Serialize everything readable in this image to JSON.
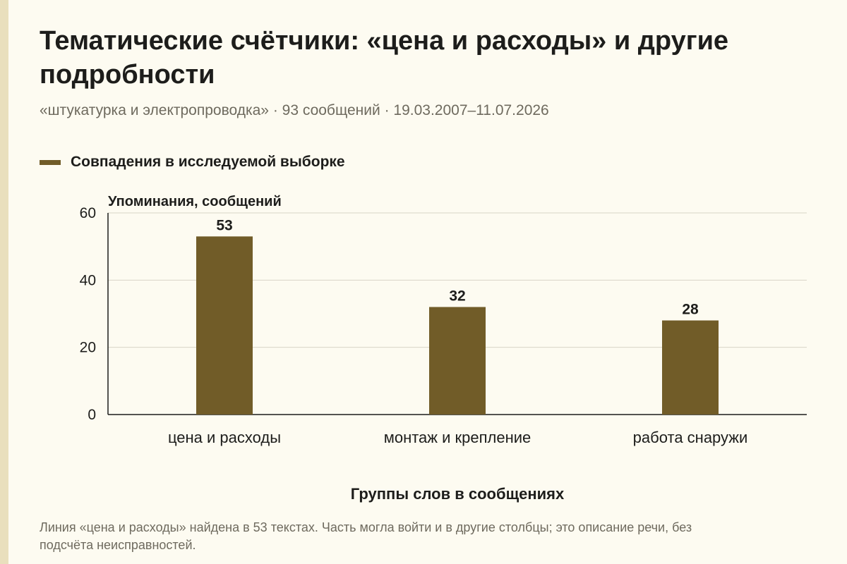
{
  "header": {
    "title": "Тематические счётчики: «цена и расходы» и другие подробности",
    "subtitle": "«штукатурка и электропроводка» · 93 сообщений · 19.03.2007–11.07.2026"
  },
  "legend": {
    "label": "Совпадения в исследуемой выборке",
    "color": "#715c28"
  },
  "chart_data": {
    "type": "bar",
    "categories": [
      "цена и расходы",
      "монтаж и крепление",
      "работа снаружи"
    ],
    "series": [
      {
        "name": "Совпадения в исследуемой выборке",
        "values": [
          53,
          32,
          28
        ],
        "color": "#715c28"
      }
    ],
    "ylabel": "Упоминания, сообщений",
    "xlabel": "Группы слов в сообщениях",
    "ylim": [
      0,
      60
    ],
    "yticks": [
      0,
      20,
      40,
      60
    ],
    "grid": true,
    "legend_position": "top-left"
  },
  "footer": {
    "note": "Линия «цена и расходы» найдена в 53 текстах. Часть могла войти и в другие столбцы; это описание речи, без подсчёта неисправностей."
  }
}
